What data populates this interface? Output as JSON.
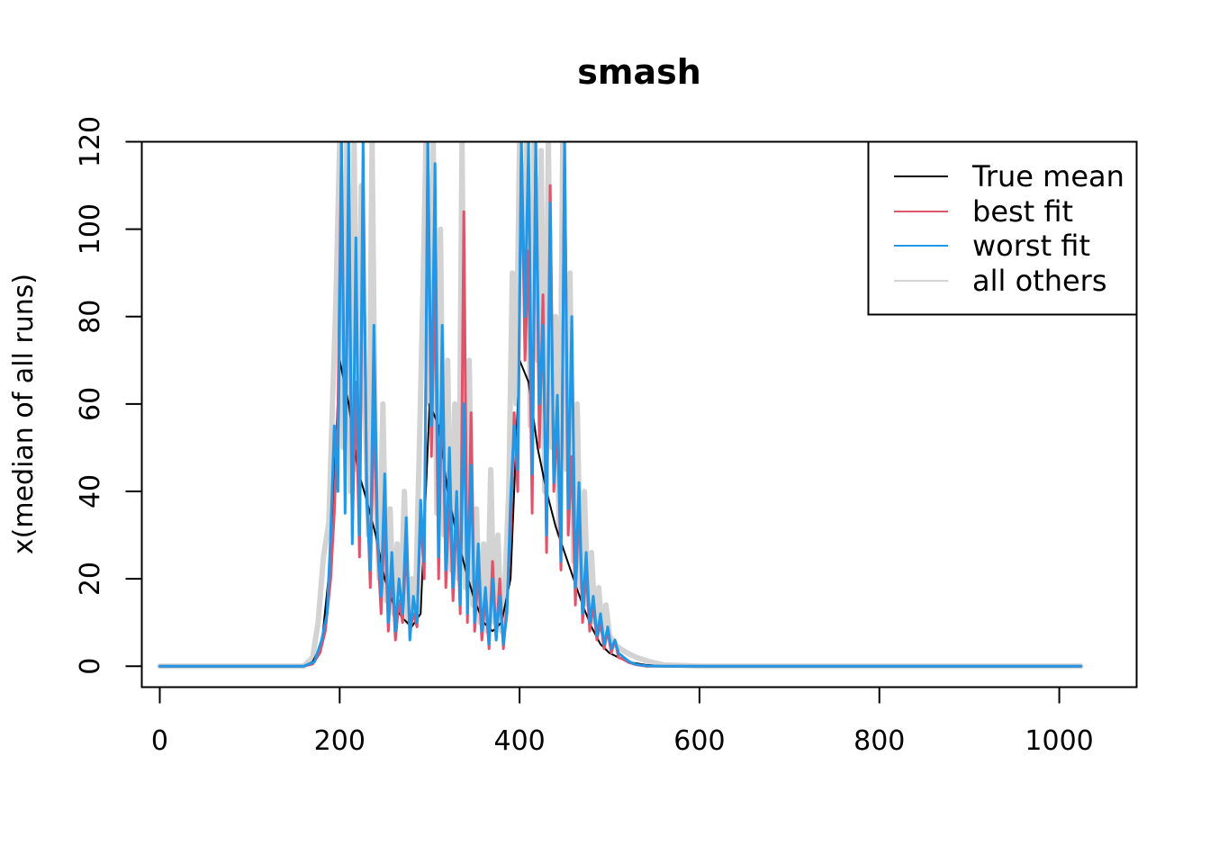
{
  "chart_data": {
    "type": "line",
    "title": "smash",
    "xlabel": "",
    "ylabel": "x(median of all runs)",
    "xlim": [
      -20,
      1086
    ],
    "ylim": [
      -4.8,
      120
    ],
    "xticks": [
      0,
      200,
      400,
      600,
      800,
      1000
    ],
    "xtick_labels": [
      "0",
      "200",
      "400",
      "600",
      "800",
      "1000"
    ],
    "yticks": [
      0,
      20,
      40,
      60,
      80,
      100,
      120
    ],
    "ytick_labels": [
      "0",
      "20",
      "40",
      "60",
      "80",
      "100",
      "120"
    ],
    "grid": false,
    "legend_position": "top-right",
    "series": [
      {
        "name": "True mean",
        "color": "#000000",
        "x": [
          0,
          160,
          170,
          180,
          190,
          200,
          210,
          220,
          230,
          240,
          250,
          260,
          270,
          280,
          290,
          300,
          310,
          320,
          330,
          340,
          350,
          360,
          370,
          380,
          390,
          400,
          410,
          420,
          430,
          440,
          450,
          460,
          470,
          480,
          490,
          500,
          520,
          540,
          560,
          600,
          1024
        ],
        "y": [
          0,
          0,
          1,
          5,
          25,
          70,
          60,
          45,
          38,
          30,
          20,
          14,
          11,
          9,
          12,
          60,
          55,
          40,
          30,
          22,
          15,
          10,
          8,
          10,
          20,
          70,
          65,
          50,
          40,
          32,
          26,
          20,
          14,
          9,
          5,
          3,
          1,
          0.3,
          0,
          0,
          0
        ]
      },
      {
        "name": "best fit",
        "color": "#DF536B",
        "x": [
          0,
          160,
          170,
          178,
          184,
          190,
          194,
          198,
          202,
          206,
          210,
          214,
          218,
          222,
          226,
          230,
          234,
          238,
          242,
          246,
          250,
          254,
          258,
          262,
          266,
          270,
          274,
          278,
          282,
          286,
          290,
          294,
          298,
          302,
          306,
          310,
          314,
          318,
          322,
          326,
          330,
          334,
          338,
          342,
          346,
          350,
          354,
          358,
          362,
          366,
          370,
          374,
          378,
          382,
          386,
          390,
          394,
          398,
          402,
          406,
          410,
          414,
          418,
          422,
          426,
          430,
          434,
          438,
          442,
          446,
          450,
          454,
          458,
          462,
          466,
          470,
          474,
          478,
          482,
          486,
          490,
          494,
          498,
          502,
          506,
          510,
          516,
          522,
          530,
          540,
          560,
          600,
          1024
        ],
        "y": [
          0,
          0,
          0.5,
          3,
          8,
          20,
          35,
          58,
          120,
          45,
          105,
          30,
          65,
          25,
          110,
          42,
          18,
          60,
          28,
          12,
          35,
          8,
          22,
          6,
          15,
          10,
          28,
          8,
          12,
          9,
          35,
          20,
          120,
          48,
          90,
          20,
          70,
          18,
          40,
          15,
          36,
          12,
          104,
          10,
          58,
          8,
          22,
          6,
          16,
          4,
          24,
          6,
          20,
          4,
          14,
          30,
          58,
          40,
          120,
          70,
          95,
          35,
          120,
          50,
          85,
          26,
          110,
          40,
          56,
          22,
          120,
          30,
          48,
          14,
          38,
          10,
          22,
          8,
          14,
          6,
          10,
          4,
          8,
          3,
          6,
          2,
          1.5,
          0.8,
          0.3,
          0,
          0,
          0,
          0
        ]
      },
      {
        "name": "worst fit",
        "color": "#2297E6",
        "x": [
          0,
          160,
          172,
          180,
          186,
          190,
          194,
          198,
          202,
          206,
          210,
          214,
          218,
          222,
          226,
          230,
          234,
          238,
          242,
          246,
          250,
          254,
          258,
          262,
          266,
          270,
          274,
          278,
          282,
          286,
          290,
          294,
          298,
          302,
          306,
          310,
          314,
          318,
          322,
          326,
          330,
          334,
          338,
          342,
          346,
          350,
          354,
          358,
          362,
          366,
          370,
          374,
          378,
          382,
          386,
          390,
          394,
          398,
          402,
          406,
          410,
          414,
          418,
          422,
          426,
          430,
          434,
          438,
          442,
          446,
          450,
          454,
          458,
          462,
          466,
          470,
          474,
          478,
          482,
          486,
          490,
          494,
          498,
          502,
          506,
          510,
          516,
          522,
          530,
          540,
          560,
          600,
          1024
        ],
        "y": [
          0,
          0,
          1,
          6,
          12,
          30,
          55,
          40,
          120,
          35,
          120,
          28,
          98,
          30,
          120,
          38,
          22,
          78,
          30,
          16,
          44,
          10,
          26,
          8,
          20,
          12,
          34,
          6,
          16,
          10,
          38,
          24,
          120,
          55,
          115,
          25,
          78,
          22,
          50,
          18,
          40,
          14,
          60,
          12,
          46,
          10,
          28,
          8,
          18,
          5,
          20,
          6,
          16,
          5,
          12,
          38,
          55,
          45,
          120,
          80,
          120,
          44,
          120,
          60,
          78,
          30,
          106,
          42,
          62,
          24,
          120,
          36,
          80,
          18,
          42,
          12,
          26,
          10,
          16,
          7,
          12,
          5,
          9,
          4,
          6,
          3,
          2,
          1,
          0.4,
          0.1,
          0,
          0,
          0
        ]
      },
      {
        "name": "all others",
        "color": "#D3D3D3",
        "x": [
          0,
          160,
          170,
          176,
          182,
          188,
          192,
          196,
          200,
          204,
          208,
          212,
          216,
          220,
          224,
          228,
          232,
          236,
          240,
          244,
          248,
          252,
          256,
          260,
          264,
          268,
          272,
          276,
          280,
          284,
          288,
          292,
          296,
          300,
          304,
          308,
          312,
          316,
          320,
          324,
          328,
          332,
          336,
          340,
          344,
          348,
          352,
          356,
          360,
          364,
          368,
          372,
          376,
          380,
          384,
          388,
          392,
          396,
          400,
          404,
          408,
          412,
          416,
          420,
          424,
          428,
          432,
          436,
          440,
          444,
          448,
          452,
          456,
          460,
          464,
          468,
          472,
          476,
          480,
          484,
          488,
          492,
          496,
          500,
          506,
          512,
          520,
          530,
          545,
          560,
          600,
          1024
        ],
        "y": [
          0,
          0,
          2,
          10,
          25,
          33,
          60,
          85,
          120,
          50,
          120,
          40,
          120,
          45,
          110,
          60,
          30,
          120,
          40,
          20,
          60,
          15,
          36,
          12,
          28,
          14,
          40,
          10,
          20,
          12,
          45,
          80,
          120,
          60,
          120,
          35,
          100,
          30,
          70,
          22,
          60,
          20,
          120,
          18,
          70,
          14,
          36,
          10,
          28,
          8,
          45,
          10,
          30,
          8,
          20,
          40,
          90,
          60,
          120,
          95,
          120,
          55,
          120,
          70,
          118,
          40,
          120,
          50,
          80,
          30,
          120,
          45,
          90,
          24,
          60,
          18,
          40,
          14,
          26,
          10,
          18,
          8,
          14,
          7,
          5,
          4,
          3,
          2,
          1,
          0.3,
          0,
          0
        ]
      }
    ]
  }
}
